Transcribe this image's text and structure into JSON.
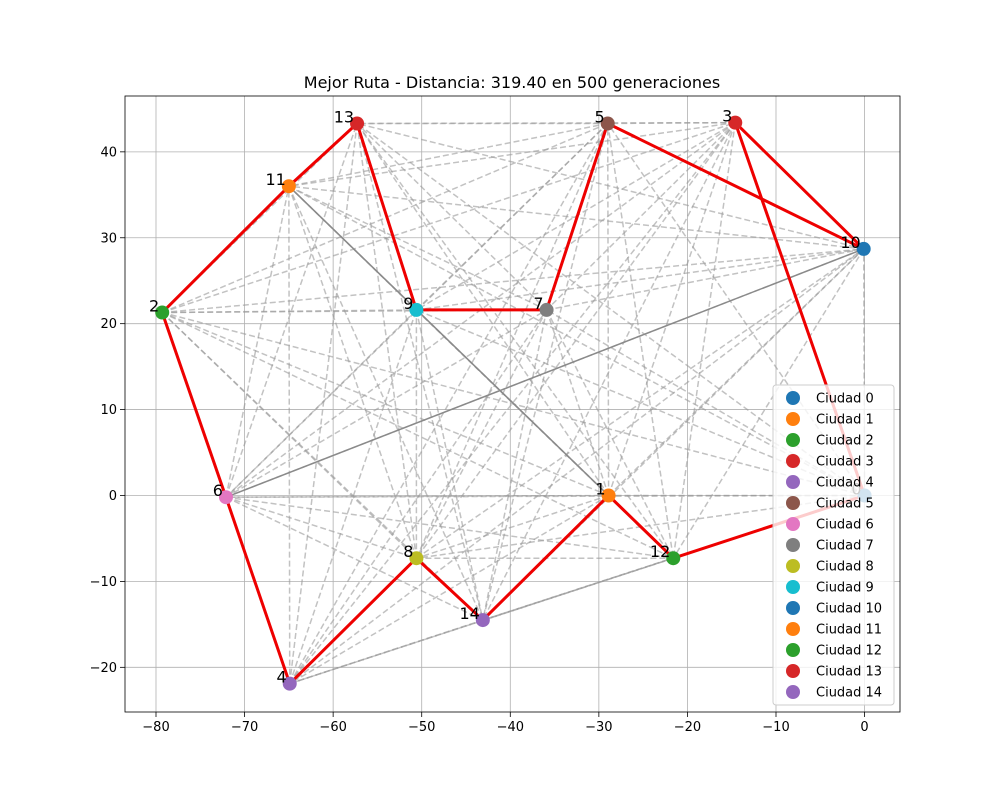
{
  "chart_data": {
    "type": "scatter",
    "title": "Mejor Ruta - Distancia: 319.40 en 500 generaciones",
    "xlabel": "",
    "ylabel": "",
    "xlim": [
      -83.5,
      4
    ],
    "ylim": [
      -25.2,
      46.5
    ],
    "x_ticks": [
      -80,
      -70,
      -60,
      -50,
      -40,
      -30,
      -20,
      -10,
      0
    ],
    "y_ticks": [
      -20,
      -10,
      0,
      10,
      20,
      30,
      40
    ],
    "grid": true,
    "legend_position": "lower-right",
    "cities": [
      {
        "id": 0,
        "label": "0",
        "name": "Ciudad 0",
        "x": 0.0,
        "y": 0.0,
        "color": "#1f77b4"
      },
      {
        "id": 1,
        "label": "1",
        "name": "Ciudad 1",
        "x": -28.9,
        "y": 0.0,
        "color": "#ff7f0e"
      },
      {
        "id": 2,
        "label": "2",
        "name": "Ciudad 2",
        "x": -79.3,
        "y": 21.3,
        "color": "#2ca02c"
      },
      {
        "id": 3,
        "label": "3",
        "name": "Ciudad 3",
        "x": -14.6,
        "y": 43.4,
        "color": "#d62728"
      },
      {
        "id": 4,
        "label": "4",
        "name": "Ciudad 4",
        "x": -64.9,
        "y": -21.9,
        "color": "#9467bd"
      },
      {
        "id": 5,
        "label": "5",
        "name": "Ciudad 5",
        "x": -29.0,
        "y": 43.3,
        "color": "#8c564b"
      },
      {
        "id": 6,
        "label": "6",
        "name": "Ciudad 6",
        "x": -72.1,
        "y": -0.2,
        "color": "#e377c2"
      },
      {
        "id": 7,
        "label": "7",
        "name": "Ciudad 7",
        "x": -35.9,
        "y": 21.6,
        "color": "#7f7f7f"
      },
      {
        "id": 8,
        "label": "8",
        "name": "Ciudad 8",
        "x": -50.6,
        "y": -7.3,
        "color": "#bcbd22"
      },
      {
        "id": 9,
        "label": "9",
        "name": "Ciudad 9",
        "x": -50.6,
        "y": 21.6,
        "color": "#17becf"
      },
      {
        "id": 10,
        "label": "10",
        "name": "Ciudad 10",
        "x": -0.1,
        "y": 28.7,
        "color": "#1f77b4"
      },
      {
        "id": 11,
        "label": "11",
        "name": "Ciudad 11",
        "x": -65.0,
        "y": 36.0,
        "color": "#ff7f0e"
      },
      {
        "id": 12,
        "label": "12",
        "name": "Ciudad 12",
        "x": -21.6,
        "y": -7.3,
        "color": "#2ca02c"
      },
      {
        "id": 13,
        "label": "13",
        "name": "Ciudad 13",
        "x": -57.3,
        "y": 43.3,
        "color": "#d62728"
      },
      {
        "id": 14,
        "label": "14",
        "name": "Ciudad 14",
        "x": -43.1,
        "y": -14.5,
        "color": "#9467bd"
      }
    ],
    "best_route": [
      0,
      3,
      10,
      5,
      7,
      9,
      13,
      11,
      2,
      6,
      4,
      8,
      14,
      1,
      12,
      0
    ],
    "route_color": "#ee0000",
    "connection_color": "#999999",
    "highlight_edges": [
      [
        11,
        1
      ],
      [
        6,
        10
      ]
    ]
  }
}
